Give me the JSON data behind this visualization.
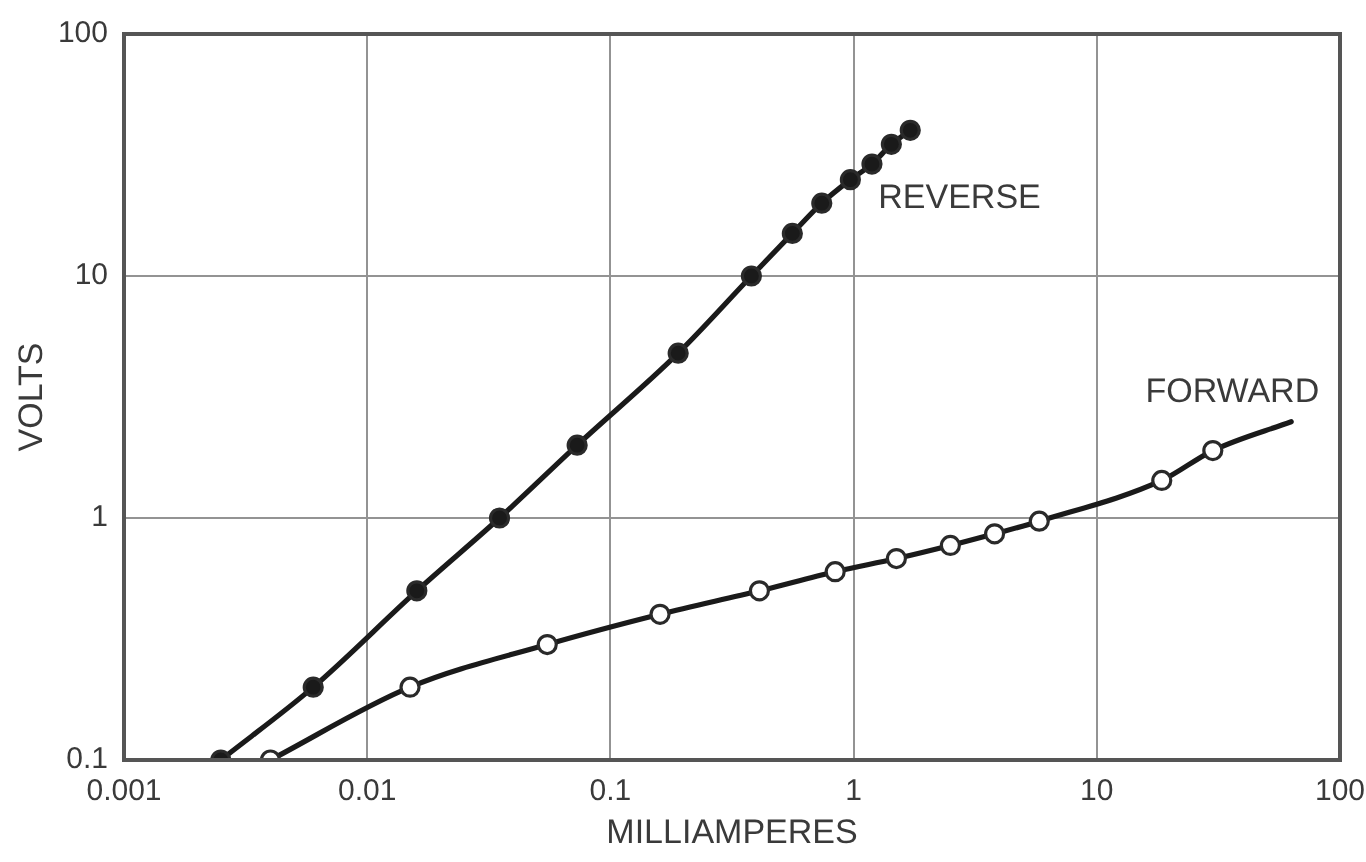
{
  "chart_data": {
    "type": "line",
    "xlabel": "MILLIAMPERES",
    "ylabel": "VOLTS",
    "log": "xy",
    "xlim": [
      0.001,
      100
    ],
    "ylim": [
      0.1,
      100
    ],
    "xticks": [
      0.001,
      0.01,
      0.1,
      1,
      10,
      100
    ],
    "yticks": [
      0.1,
      1,
      10,
      100
    ],
    "grid": true,
    "legend": false,
    "series": [
      {
        "name": "REVERSE",
        "type": "line",
        "marker": "circle",
        "color": "#1a1a1a",
        "x": [
          0.0025,
          0.006,
          0.016,
          0.035,
          0.073,
          0.19,
          0.38,
          0.56,
          0.74,
          0.97,
          1.19,
          1.43,
          1.71
        ],
        "values": [
          0.1,
          0.2,
          0.5,
          1,
          2,
          4.8,
          10,
          15,
          20,
          25,
          29,
          35,
          40
        ]
      },
      {
        "name": "FORWARD",
        "type": "line",
        "marker": "none",
        "color": "#1a1a1a",
        "x": [
          0.004,
          0.015,
          0.055,
          0.16,
          0.41,
          0.84,
          1.5,
          2.5,
          3.8,
          5.8,
          18.5,
          30,
          63
        ],
        "values": [
          0.1,
          0.2,
          0.3,
          0.4,
          0.5,
          0.6,
          0.68,
          0.77,
          0.86,
          0.97,
          1.43,
          1.9,
          2.5
        ]
      },
      {
        "type": "scatter",
        "marker": "circle",
        "color": "#ffffff",
        "x": [
          0.004,
          0.015,
          0.055,
          0.16,
          0.41,
          0.84,
          1.5,
          2.5,
          3.8,
          5.8,
          18.5,
          30
        ],
        "values": [
          0.1,
          0.2,
          0.3,
          0.4,
          0.5,
          0.6,
          0.68,
          0.77,
          0.86,
          0.97,
          1.43,
          1.9
        ]
      }
    ]
  }
}
